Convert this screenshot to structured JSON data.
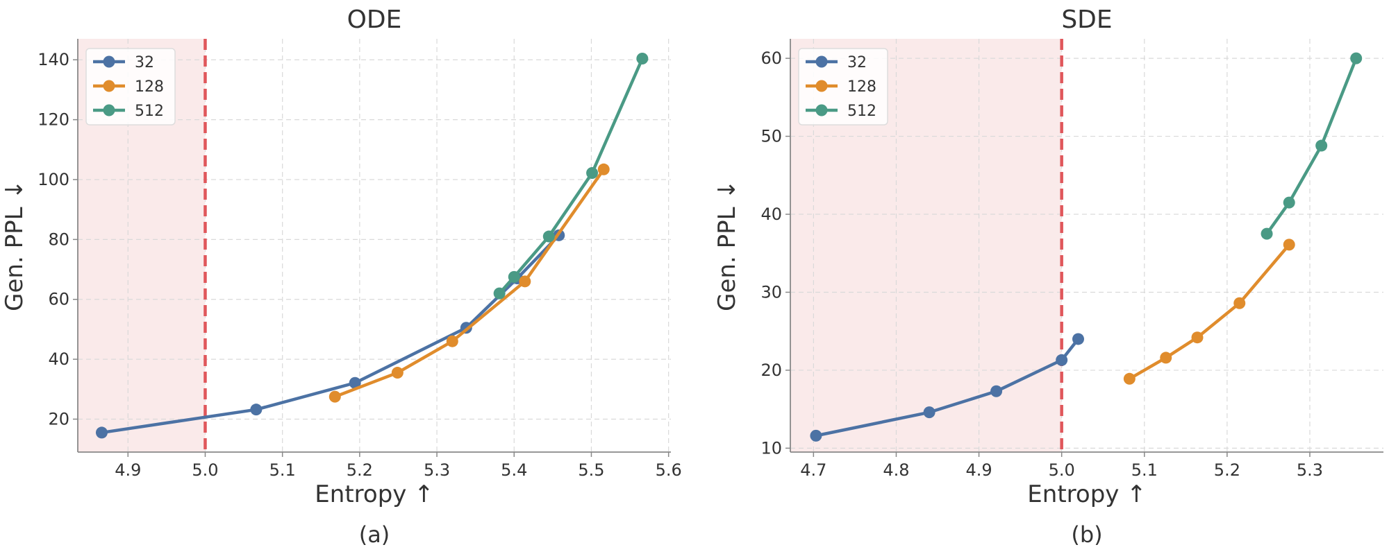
{
  "chart_data": [
    {
      "type": "line",
      "title": "ODE",
      "xlabel": "Entropy ↑",
      "ylabel": "Gen. PPL ↓",
      "caption": "(a)",
      "xlim": [
        4.835,
        5.603
      ],
      "ylim": [
        9,
        147
      ],
      "xticks": [
        4.9,
        5.0,
        5.1,
        5.2,
        5.3,
        5.4,
        5.5,
        5.6
      ],
      "xtick_labels": [
        "4.9",
        "5.0",
        "5.1",
        "5.2",
        "5.3",
        "5.4",
        "5.5",
        "5.6"
      ],
      "yticks": [
        20,
        40,
        60,
        80,
        100,
        120,
        140
      ],
      "ytick_labels": [
        "20",
        "40",
        "60",
        "80",
        "100",
        "120",
        "140"
      ],
      "threshold_x": 5.0,
      "shaded_region_x": [
        4.835,
        5.0
      ],
      "grid": true,
      "legend_position": "top-left",
      "series": [
        {
          "name": "32",
          "color": "#4c72a4",
          "x": [
            4.866,
            5.066,
            5.194,
            5.338,
            5.404,
            5.458
          ],
          "y": [
            15.5,
            23.2,
            32.1,
            50.5,
            67.0,
            81.4
          ]
        },
        {
          "name": "128",
          "color": "#e08c2c",
          "x": [
            5.168,
            5.249,
            5.32,
            5.414,
            5.516
          ],
          "y": [
            27.5,
            35.5,
            46.0,
            66.0,
            103.4
          ]
        },
        {
          "name": "512",
          "color": "#4a9a85",
          "x": [
            5.381,
            5.4,
            5.445,
            5.501,
            5.566
          ],
          "y": [
            62.0,
            67.5,
            81.0,
            102.2,
            140.4
          ]
        }
      ]
    },
    {
      "type": "line",
      "title": "SDE",
      "xlabel": "Entropy ↑",
      "ylabel": "Gen. PPL ↓",
      "caption": "(b)",
      "xlim": [
        4.672,
        5.389
      ],
      "ylim": [
        9.5,
        62.5
      ],
      "xticks": [
        4.7,
        4.8,
        4.9,
        5.0,
        5.1,
        5.2,
        5.3
      ],
      "xtick_labels": [
        "4.7",
        "4.8",
        "4.9",
        "5.0",
        "5.1",
        "5.2",
        "5.3"
      ],
      "yticks": [
        10,
        20,
        30,
        40,
        50,
        60
      ],
      "ytick_labels": [
        "10",
        "20",
        "30",
        "40",
        "50",
        "60"
      ],
      "threshold_x": 5.0,
      "shaded_region_x": [
        4.672,
        5.0
      ],
      "grid": true,
      "legend_position": "top-left",
      "series": [
        {
          "name": "32",
          "color": "#4c72a4",
          "x": [
            4.703,
            4.84,
            4.921,
            5.0,
            5.02
          ],
          "y": [
            11.6,
            14.6,
            17.3,
            21.3,
            24.0
          ]
        },
        {
          "name": "128",
          "color": "#e08c2c",
          "x": [
            5.082,
            5.126,
            5.164,
            5.215,
            5.275
          ],
          "y": [
            18.9,
            21.6,
            24.2,
            28.6,
            36.1
          ]
        },
        {
          "name": "512",
          "color": "#4a9a85",
          "x": [
            5.248,
            5.275,
            5.314,
            5.356
          ],
          "y": [
            37.5,
            41.5,
            48.8,
            60.0
          ]
        }
      ]
    }
  ]
}
